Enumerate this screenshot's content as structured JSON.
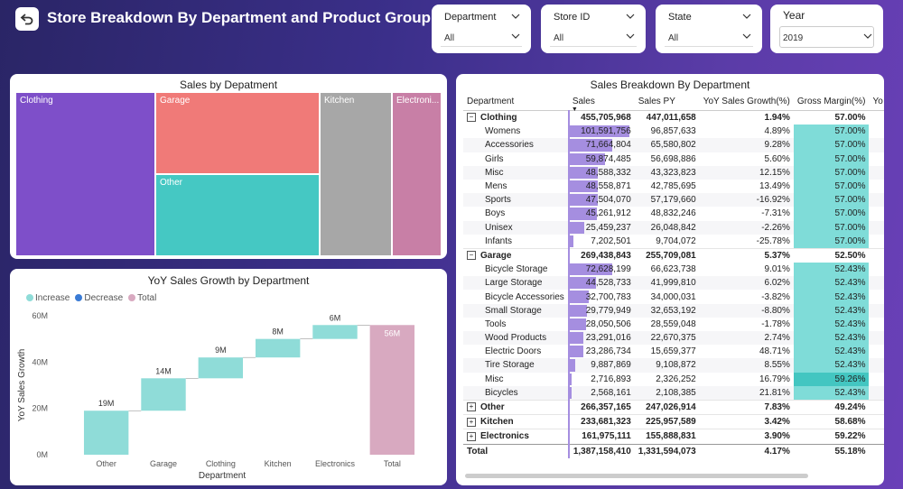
{
  "header": {
    "title": "Store Breakdown By Department and Product Group"
  },
  "slicers": [
    {
      "label": "Department",
      "value": "All"
    },
    {
      "label": "Store ID",
      "value": "All"
    },
    {
      "label": "State",
      "value": "All"
    },
    {
      "label": "Year",
      "value": "2019"
    }
  ],
  "treemap": {
    "title": "Sales by Depatment",
    "cells": [
      {
        "label": "Clothing",
        "color": "#7e4fc9"
      },
      {
        "label": "Garage",
        "color": "#f07a78"
      },
      {
        "label": "Other",
        "color": "#45c8c3"
      },
      {
        "label": "Kitchen",
        "color": "#a7a7a7"
      },
      {
        "label": "Electroni...",
        "color": "#c87fa6"
      }
    ]
  },
  "waterfall": {
    "title": "YoY Sales Growth by Department",
    "legend": [
      "Increase",
      "Decrease",
      "Total"
    ],
    "legend_colors": [
      "#8fdcd8",
      "#3a7bd5",
      "#d8a9c0"
    ]
  },
  "chart_data": {
    "type": "bar",
    "subtype": "waterfall",
    "title": "YoY Sales Growth by Department",
    "xlabel": "Department",
    "ylabel": "YoY Sales Growth",
    "ylim": [
      0,
      60000000
    ],
    "yticks": [
      "0M",
      "20M",
      "40M",
      "60M"
    ],
    "ytick_values": [
      0,
      20000000,
      40000000,
      60000000
    ],
    "categories": [
      "Other",
      "Garage",
      "Clothing",
      "Kitchen",
      "Electronics",
      "Total"
    ],
    "values": [
      19000000,
      14000000,
      9000000,
      8000000,
      6000000,
      56000000
    ],
    "kinds": [
      "increase",
      "increase",
      "increase",
      "increase",
      "increase",
      "total"
    ],
    "data_labels": [
      "19M",
      "14M",
      "9M",
      "8M",
      "6M",
      "56M"
    ]
  },
  "matrix": {
    "title": "Sales Breakdown By Department",
    "columns": [
      "Department",
      "Sales",
      "Sales PY",
      "YoY Sales Growth(%)",
      "Gross Margin(%)",
      "Yo"
    ],
    "rows": [
      {
        "type": "grp",
        "exp": "⊟",
        "name": "Clothing",
        "sales": "455,705,968",
        "py": "447,011,658",
        "yoy": "1.94%",
        "gm": "57.00%",
        "frac": 0
      },
      {
        "type": "sub",
        "name": "Womens",
        "sales": "101,591,756",
        "py": "96,857,633",
        "yoy": "4.89%",
        "gm": "57.00%",
        "frac": 1.0
      },
      {
        "type": "sub",
        "name": "Accessories",
        "sales": "71,664,804",
        "py": "65,580,802",
        "yoy": "9.28%",
        "gm": "57.00%",
        "frac": 0.71
      },
      {
        "type": "sub",
        "name": "Girls",
        "sales": "59,874,485",
        "py": "56,698,886",
        "yoy": "5.60%",
        "gm": "57.00%",
        "frac": 0.59
      },
      {
        "type": "sub",
        "name": "Misc",
        "sales": "48,588,332",
        "py": "43,323,823",
        "yoy": "12.15%",
        "gm": "57.00%",
        "frac": 0.48
      },
      {
        "type": "sub",
        "name": "Mens",
        "sales": "48,558,871",
        "py": "42,785,695",
        "yoy": "13.49%",
        "gm": "57.00%",
        "frac": 0.48
      },
      {
        "type": "sub",
        "name": "Sports",
        "sales": "47,504,070",
        "py": "57,179,660",
        "yoy": "-16.92%",
        "gm": "57.00%",
        "frac": 0.47
      },
      {
        "type": "sub",
        "name": "Boys",
        "sales": "45,261,912",
        "py": "48,832,246",
        "yoy": "-7.31%",
        "gm": "57.00%",
        "frac": 0.45
      },
      {
        "type": "sub",
        "name": "Unisex",
        "sales": "25,459,237",
        "py": "26,048,842",
        "yoy": "-2.26%",
        "gm": "57.00%",
        "frac": 0.25
      },
      {
        "type": "sub",
        "name": "Infants",
        "sales": "7,202,501",
        "py": "9,704,072",
        "yoy": "-25.78%",
        "gm": "57.00%",
        "frac": 0.07
      },
      {
        "type": "grp",
        "exp": "⊟",
        "name": "Garage",
        "sales": "269,438,843",
        "py": "255,709,081",
        "yoy": "5.37%",
        "gm": "52.50%",
        "frac": 0
      },
      {
        "type": "sub",
        "name": "Bicycle Storage",
        "sales": "72,628,199",
        "py": "66,623,738",
        "yoy": "9.01%",
        "gm": "52.43%",
        "frac": 0.72
      },
      {
        "type": "sub",
        "name": "Large Storage",
        "sales": "44,528,733",
        "py": "41,999,810",
        "yoy": "6.02%",
        "gm": "52.43%",
        "frac": 0.44
      },
      {
        "type": "sub",
        "name": "Bicycle Accessories",
        "sales": "32,700,783",
        "py": "34,000,031",
        "yoy": "-3.82%",
        "gm": "52.43%",
        "frac": 0.32
      },
      {
        "type": "sub",
        "name": "Small Storage",
        "sales": "29,779,949",
        "py": "32,653,192",
        "yoy": "-8.80%",
        "gm": "52.43%",
        "frac": 0.29
      },
      {
        "type": "sub",
        "name": "Tools",
        "sales": "28,050,506",
        "py": "28,559,048",
        "yoy": "-1.78%",
        "gm": "52.43%",
        "frac": 0.28
      },
      {
        "type": "sub",
        "name": "Wood Products",
        "sales": "23,291,016",
        "py": "22,670,375",
        "yoy": "2.74%",
        "gm": "52.43%",
        "frac": 0.23
      },
      {
        "type": "sub",
        "name": "Electric Doors",
        "sales": "23,286,734",
        "py": "15,659,377",
        "yoy": "48.71%",
        "gm": "52.43%",
        "frac": 0.23
      },
      {
        "type": "sub",
        "name": "Tire Storage",
        "sales": "9,887,869",
        "py": "9,108,872",
        "yoy": "8.55%",
        "gm": "52.43%",
        "frac": 0.1
      },
      {
        "type": "sub",
        "name": "Misc",
        "sales": "2,716,893",
        "py": "2,326,252",
        "yoy": "16.79%",
        "gm": "59.26%",
        "frac": 0.03,
        "hi": true
      },
      {
        "type": "sub",
        "name": "Bicycles",
        "sales": "2,568,161",
        "py": "2,108,385",
        "yoy": "21.81%",
        "gm": "52.43%",
        "frac": 0.03
      },
      {
        "type": "grp",
        "exp": "⊞",
        "name": "Other",
        "sales": "266,357,165",
        "py": "247,026,914",
        "yoy": "7.83%",
        "gm": "49.24%",
        "frac": 0
      },
      {
        "type": "grp",
        "exp": "⊞",
        "name": "Kitchen",
        "sales": "233,681,323",
        "py": "225,957,589",
        "yoy": "3.42%",
        "gm": "58.68%",
        "frac": 0
      },
      {
        "type": "grp",
        "exp": "⊞",
        "name": "Electronics",
        "sales": "161,975,111",
        "py": "155,888,831",
        "yoy": "3.90%",
        "gm": "59.22%",
        "frac": 0
      },
      {
        "type": "tot",
        "name": "Total",
        "sales": "1,387,158,410",
        "py": "1,331,594,073",
        "yoy": "4.17%",
        "gm": "55.18%",
        "frac": 0
      }
    ]
  }
}
